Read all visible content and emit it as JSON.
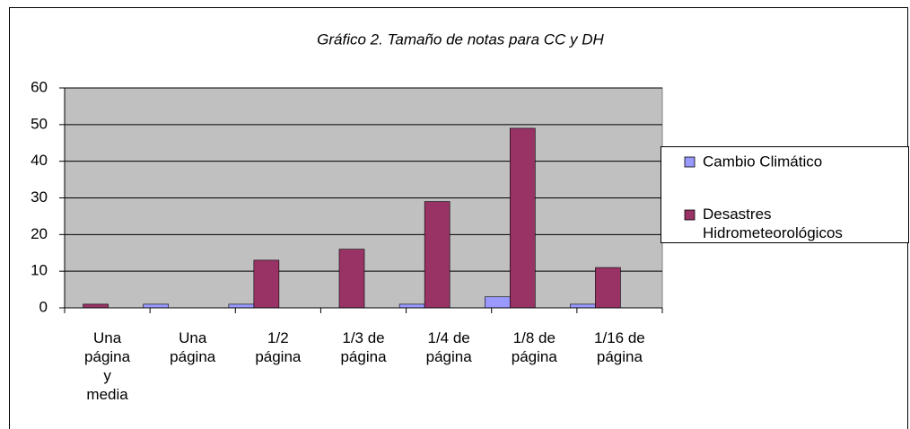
{
  "chart_data": {
    "type": "bar",
    "title": "Gráfico 2. Tamaño de notas para CC y DH",
    "categories": [
      "Una\npágina\ny\nmedia",
      "Una\npágina",
      "1/2\npágina",
      "1/3 de\npágina",
      "1/4 de\npágina",
      "1/8 de\npágina",
      "1/16 de\npágina"
    ],
    "series": [
      {
        "name": "Cambio Climático",
        "color": "#9999ff",
        "values": [
          0,
          1,
          1,
          0,
          1,
          3,
          1
        ]
      },
      {
        "name": "Desastres\nHidrometeorológicos",
        "color": "#993366",
        "values": [
          1,
          0,
          13,
          16,
          29,
          49,
          11
        ]
      }
    ],
    "ylim": [
      0,
      60
    ],
    "yticks": [
      0,
      10,
      20,
      30,
      40,
      50,
      60
    ],
    "grid": true,
    "legend": "right"
  }
}
